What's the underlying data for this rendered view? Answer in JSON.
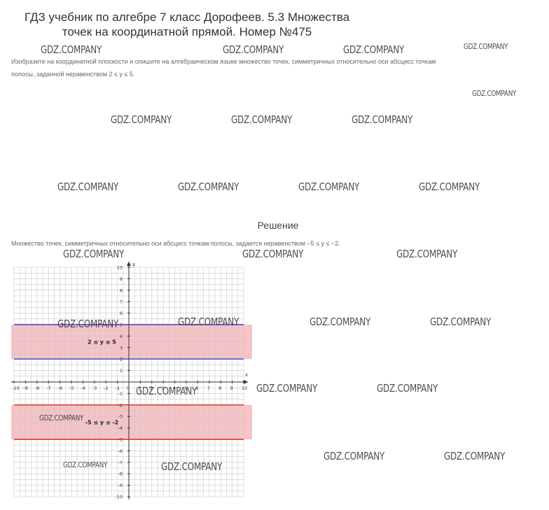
{
  "title_line1": "ГДЗ учебник по алгебре 7 класс Дорофеев. 5.3 Множества",
  "title_line2": "точек на координатной прямой. Номер №475",
  "task_line1": "Изобразите на координатной плоскости и опишите на алгебраическом языке множество точек, симметричных относительно оси абсцисс точкам",
  "task_line2": "полосы, заданной неравенством 2 ≤ y ≤ 5.",
  "solution_heading": "Решение",
  "solution_text": "Множество точек, симметричных относительно оси абсцисс точкам полосы, задается неравенством −5 ≤ y ≤ −2.",
  "watermark": "GDZ.COMPANY",
  "graph": {
    "x_label": "x",
    "y_label": "y",
    "x_ticks": [
      "-10",
      "-9",
      "-8",
      "-7",
      "-6",
      "-5",
      "-4",
      "-3",
      "-2",
      "-1",
      "0",
      "1",
      "2",
      "3",
      "4",
      "5",
      "6",
      "7",
      "8",
      "9",
      "10"
    ],
    "y_ticks": [
      "10",
      "9",
      "8",
      "7",
      "6",
      "5",
      "4",
      "3",
      "2",
      "1",
      "-1",
      "-2",
      "-3",
      "-4",
      "-5",
      "-6",
      "-7",
      "-8",
      "-9",
      "-10"
    ],
    "band_upper_label": "2 ≤ y ≤ 5",
    "band_lower_label": "-5 ≤ y ≤ -2",
    "band_upper": [
      2,
      5
    ],
    "band_lower": [
      -5,
      -2
    ],
    "upper_line_color": "#3a3ad0",
    "lower_line_color": "#e02020",
    "band_color": "#f6b8bc"
  }
}
